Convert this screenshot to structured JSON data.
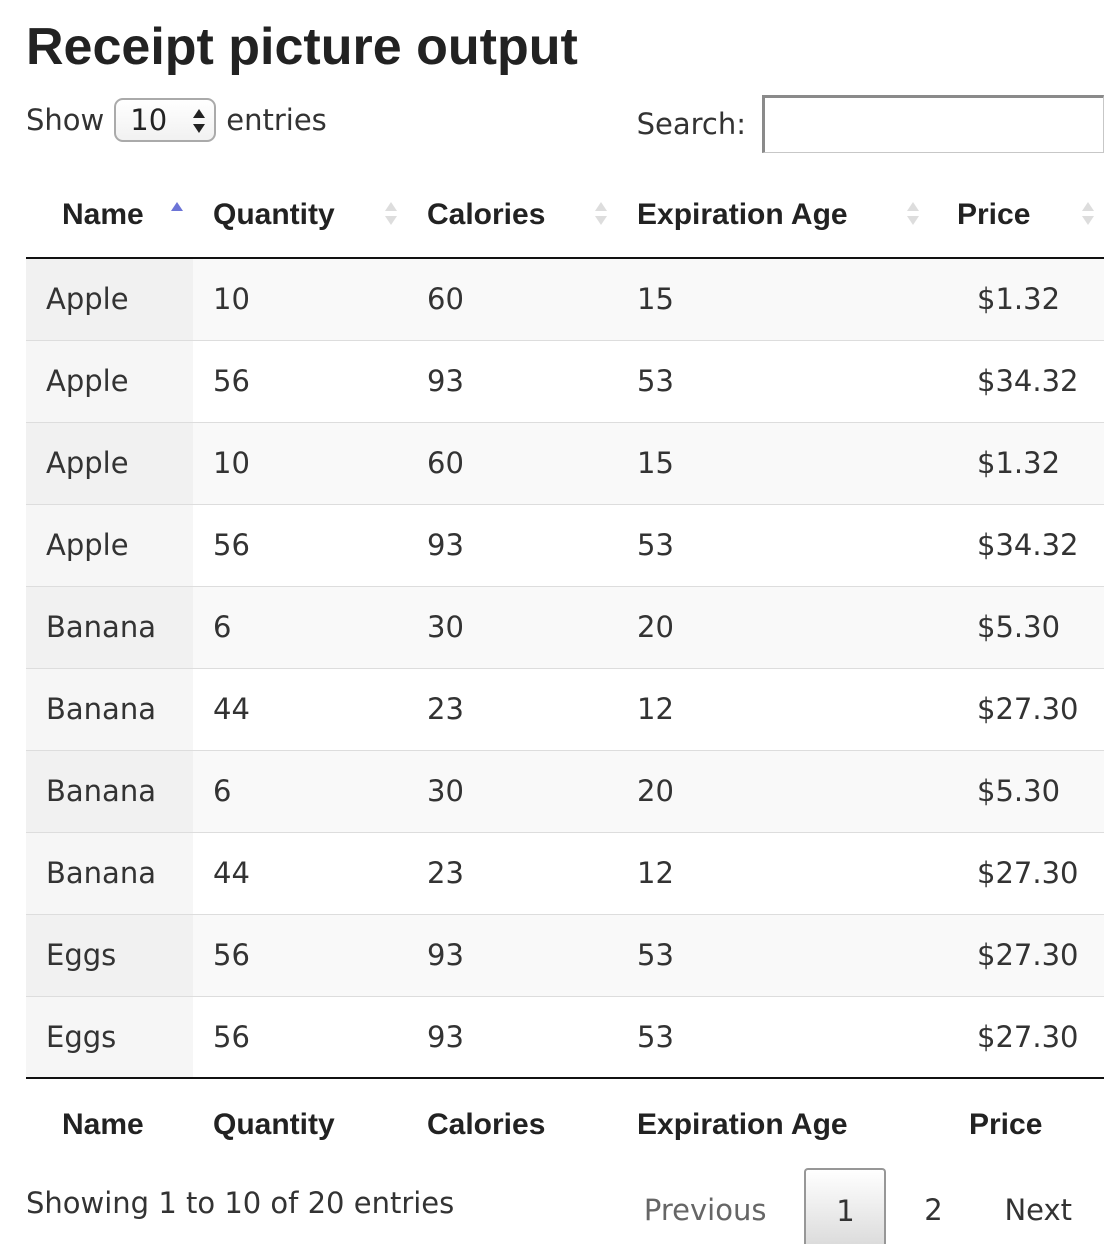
{
  "title": "Receipt picture output",
  "length": {
    "show_label": "Show",
    "selected": "10",
    "entries_label": "entries"
  },
  "search": {
    "label": "Search:",
    "value": "",
    "placeholder": ""
  },
  "columns": [
    "Name",
    "Quantity",
    "Calories",
    "Expiration Age",
    "Price"
  ],
  "sort": {
    "column": "Name",
    "direction": "ascending"
  },
  "rows": [
    [
      "Apple",
      "10",
      "60",
      "15",
      "$1.32"
    ],
    [
      "Apple",
      "56",
      "93",
      "53",
      "$34.32"
    ],
    [
      "Apple",
      "10",
      "60",
      "15",
      "$1.32"
    ],
    [
      "Apple",
      "56",
      "93",
      "53",
      "$34.32"
    ],
    [
      "Banana",
      "6",
      "30",
      "20",
      "$5.30"
    ],
    [
      "Banana",
      "44",
      "23",
      "12",
      "$27.30"
    ],
    [
      "Banana",
      "6",
      "30",
      "20",
      "$5.30"
    ],
    [
      "Banana",
      "44",
      "23",
      "12",
      "$27.30"
    ],
    [
      "Eggs",
      "56",
      "93",
      "53",
      "$27.30"
    ],
    [
      "Eggs",
      "56",
      "93",
      "53",
      "$27.30"
    ]
  ],
  "info": "Showing 1 to 10 of 20 entries",
  "pagination": {
    "previous": "Previous",
    "pages": [
      "1",
      "2"
    ],
    "current": "1",
    "next": "Next"
  },
  "colors": {
    "sort_active": "#6c74d6",
    "sort_inactive": "#dddddd"
  }
}
